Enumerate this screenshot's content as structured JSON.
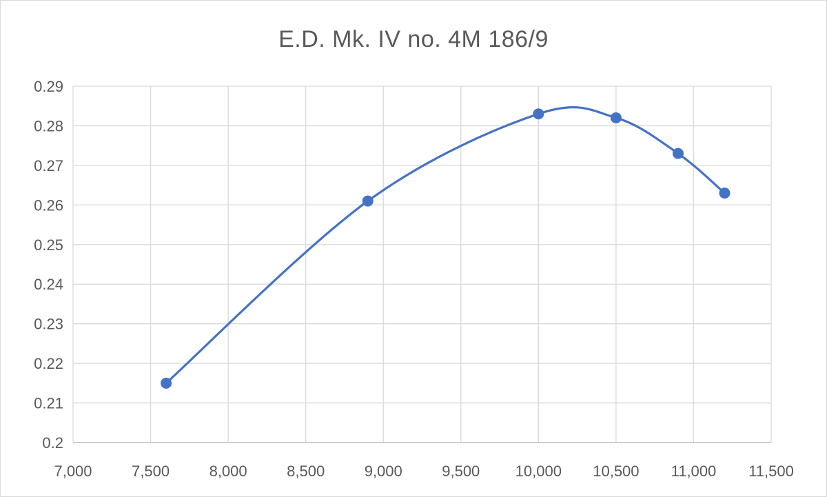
{
  "chart_data": {
    "type": "scatter",
    "title": "E.D. Mk. IV no. 4M 186/9",
    "xlabel": "",
    "ylabel": "",
    "smooth_line": true,
    "legend": "none",
    "grid": true,
    "xlim": [
      7000,
      11500
    ],
    "ylim": [
      0.2,
      0.29
    ],
    "xticks": [
      7000,
      7500,
      8000,
      8500,
      9000,
      9500,
      10000,
      10500,
      11000,
      11500
    ],
    "xtick_labels": [
      "7,000",
      "7,500",
      "8,000",
      "8,500",
      "9,000",
      "9,500",
      "10,000",
      "10,500",
      "11,000",
      "11,500"
    ],
    "yticks": [
      0.2,
      0.21,
      0.22,
      0.23,
      0.24,
      0.25,
      0.26,
      0.27,
      0.28,
      0.29
    ],
    "ytick_labels": [
      "0.2",
      "0.21",
      "0.22",
      "0.23",
      "0.24",
      "0.25",
      "0.26",
      "0.27",
      "0.28",
      "0.29"
    ],
    "series": [
      {
        "x": [
          7600,
          8900,
          10000,
          10500,
          10900,
          11200
        ],
        "y": [
          0.215,
          0.261,
          0.283,
          0.282,
          0.273,
          0.263
        ]
      }
    ],
    "colors": {
      "series": "#4472c4",
      "grid": "#d9d9d9",
      "text": "#595959"
    }
  }
}
